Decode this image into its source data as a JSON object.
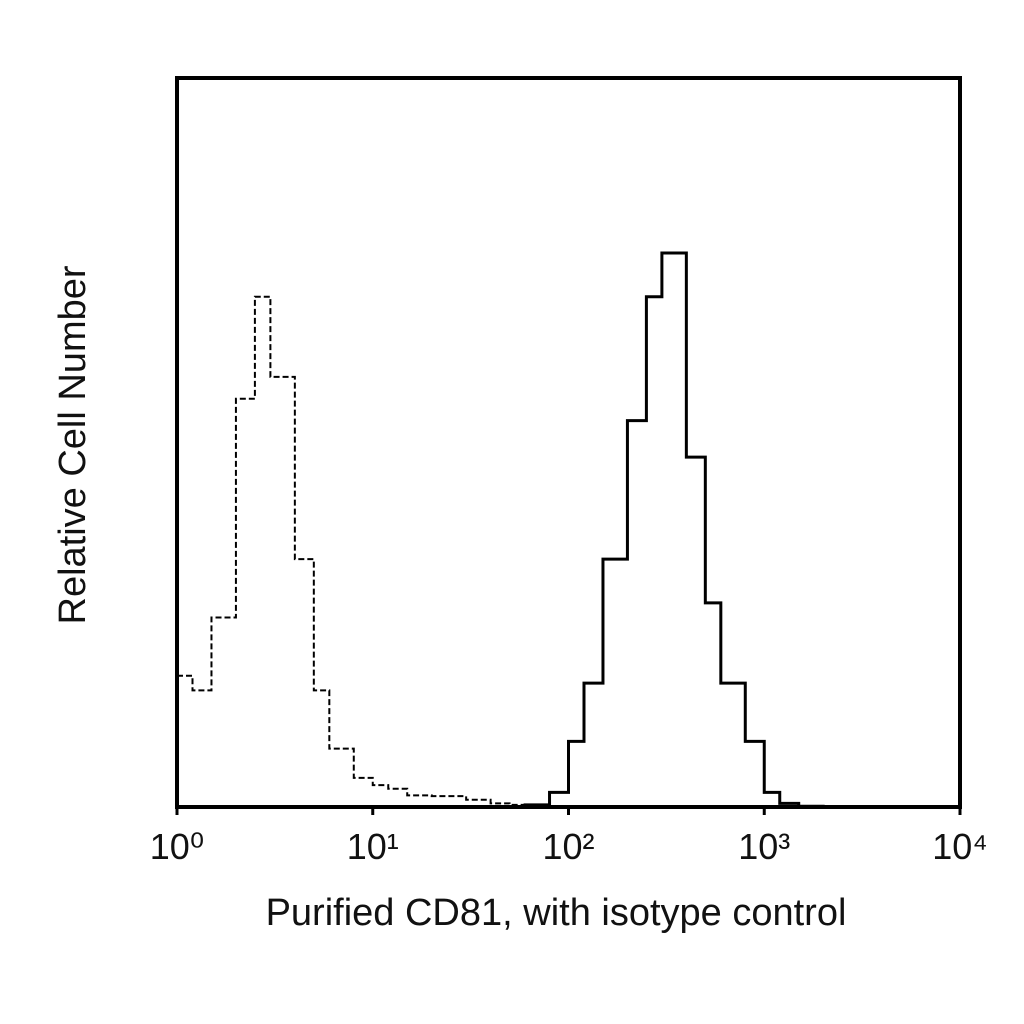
{
  "chart_data": {
    "type": "line",
    "x_label": "Purified CD81, with isotype control",
    "y_label": "Relative Cell Number",
    "xscale": "log",
    "xlim": [
      1,
      10000
    ],
    "xticks": [
      {
        "value": 1,
        "label": "10⁰"
      },
      {
        "value": 10,
        "label": "10¹"
      },
      {
        "value": 100,
        "label": "10²"
      },
      {
        "value": 1000,
        "label": "10³"
      },
      {
        "value": 10000,
        "label": "10⁴"
      }
    ],
    "ylim": [
      0,
      100
    ],
    "x": [
      1,
      1.2,
      1.5,
      2,
      2.5,
      3,
      4,
      5,
      6,
      8,
      10,
      12,
      15,
      20,
      30,
      40,
      50,
      60,
      80,
      100,
      120,
      150,
      200,
      250,
      300,
      400,
      500,
      600,
      800,
      1000,
      1200,
      1500,
      2000
    ],
    "series": [
      {
        "color": "#000000",
        "line_style": "dashed",
        "values": [
          18,
          16,
          26,
          56,
          70,
          59,
          34,
          16,
          8,
          4,
          3,
          2.5,
          1.6,
          1.5,
          1,
          0.5,
          0.3,
          0.2,
          0,
          0,
          null,
          null,
          null,
          null,
          null,
          null,
          null,
          null,
          null,
          null,
          null,
          null,
          null
        ]
      },
      {
        "color": "#000000",
        "line_style": "solid",
        "values": [
          null,
          null,
          null,
          null,
          null,
          null,
          null,
          null,
          null,
          null,
          null,
          null,
          null,
          null,
          0,
          0,
          0,
          0.3,
          2,
          9,
          17,
          34,
          53,
          70,
          76,
          48,
          28,
          17,
          9,
          2,
          0.5,
          0.1,
          0
        ]
      }
    ]
  }
}
